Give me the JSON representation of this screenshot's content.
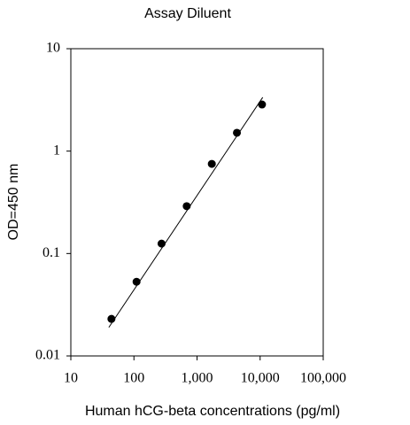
{
  "chart_data": {
    "type": "scatter",
    "title": "Assay Diluent",
    "x_label": "Human hCG-beta concentrations (pg/ml)",
    "y_label": "OD=450 nm",
    "x": [
      44,
      110,
      274,
      686,
      1715,
      4287,
      10717
    ],
    "series": [
      {
        "color": "#000000",
        "values": [
          0.023,
          0.053,
          0.125,
          0.29,
          0.75,
          1.51,
          2.85
        ]
      }
    ],
    "trendline": {
      "color": "#000000",
      "x": [
        40,
        11000
      ],
      "values": [
        0.019,
        3.35
      ]
    },
    "xscale": "log",
    "yscale": "log",
    "xlim": [
      10,
      100000
    ],
    "ylim": [
      0.01,
      10
    ],
    "xticks": [
      10,
      100,
      {
        "value": 1000,
        "label": "1,000"
      },
      {
        "value": 10000,
        "label": "10,000"
      },
      {
        "value": 100000,
        "label": "100,000"
      }
    ],
    "yticks": [
      0.01,
      0.1,
      1,
      10
    ]
  }
}
